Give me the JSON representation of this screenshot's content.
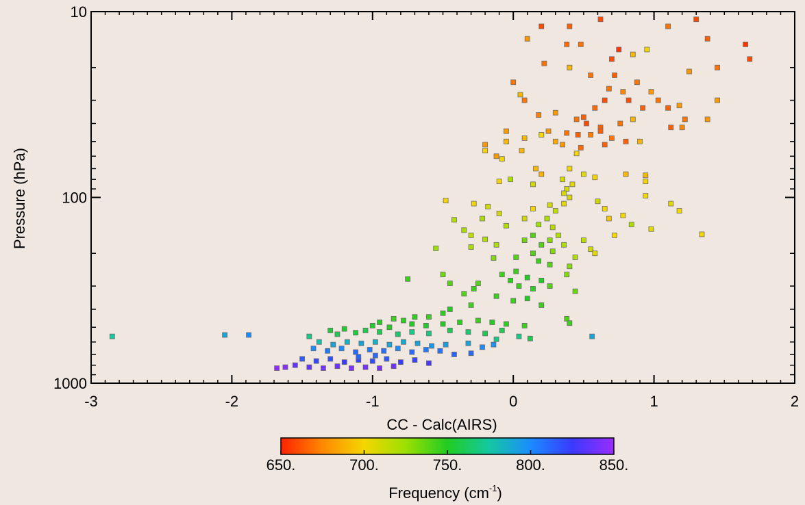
{
  "chart_data": {
    "type": "scatter",
    "xlabel": "CC - Calc(AIRS)",
    "ylabel": "Pressure (hPa)",
    "xlim": [
      -3,
      2
    ],
    "ylim": [
      1000,
      10
    ],
    "y_scale": "log",
    "x_ticks": [
      "-3",
      "-2",
      "-1",
      "0",
      "1",
      "2"
    ],
    "y_ticks": [
      "10",
      "100",
      "1000"
    ],
    "grid": false,
    "colorbar": {
      "label": "Frequency (cm",
      "label_sup": "-1",
      "label_end": ")",
      "range": [
        650,
        850
      ],
      "ticks": [
        "650.",
        "700.",
        "750.",
        "800.",
        "850."
      ],
      "colors": [
        "#ff2200",
        "#ff8800",
        "#f5d600",
        "#9be000",
        "#22cc22",
        "#14c8a0",
        "#1a8cff",
        "#3a3aff",
        "#9b2cff"
      ]
    },
    "points": [
      {
        "x": 0.62,
        "y": 11,
        "f": 660
      },
      {
        "x": 0.75,
        "y": 16,
        "f": 655
      },
      {
        "x": 0.85,
        "y": 17,
        "f": 690
      },
      {
        "x": 0.95,
        "y": 16,
        "f": 700
      },
      {
        "x": 1.1,
        "y": 12,
        "f": 670
      },
      {
        "x": 1.3,
        "y": 11,
        "f": 660
      },
      {
        "x": 1.38,
        "y": 14,
        "f": 665
      },
      {
        "x": 1.65,
        "y": 15,
        "f": 655
      },
      {
        "x": 1.68,
        "y": 18,
        "f": 660
      },
      {
        "x": 1.45,
        "y": 20,
        "f": 670
      },
      {
        "x": 1.25,
        "y": 21,
        "f": 680
      },
      {
        "x": 0.2,
        "y": 12,
        "f": 660
      },
      {
        "x": 0.4,
        "y": 12,
        "f": 665
      },
      {
        "x": 0.48,
        "y": 15,
        "f": 670
      },
      {
        "x": 0.38,
        "y": 15,
        "f": 668
      },
      {
        "x": 0.1,
        "y": 14,
        "f": 680
      },
      {
        "x": 0.22,
        "y": 19,
        "f": 670
      },
      {
        "x": 0.4,
        "y": 20,
        "f": 690
      },
      {
        "x": 0.55,
        "y": 22,
        "f": 670
      },
      {
        "x": 0.7,
        "y": 18,
        "f": 660
      },
      {
        "x": 0.72,
        "y": 22,
        "f": 665
      },
      {
        "x": 0.68,
        "y": 26,
        "f": 670
      },
      {
        "x": 0.65,
        "y": 30,
        "f": 660
      },
      {
        "x": 0.78,
        "y": 27,
        "f": 675
      },
      {
        "x": 0.82,
        "y": 30,
        "f": 660
      },
      {
        "x": 0.88,
        "y": 24,
        "f": 670
      },
      {
        "x": 0.92,
        "y": 33,
        "f": 665
      },
      {
        "x": 0.98,
        "y": 27,
        "f": 680
      },
      {
        "x": 1.03,
        "y": 30,
        "f": 670
      },
      {
        "x": 1.1,
        "y": 33,
        "f": 665
      },
      {
        "x": 1.18,
        "y": 32,
        "f": 680
      },
      {
        "x": 1.22,
        "y": 38,
        "f": 670
      },
      {
        "x": 1.38,
        "y": 38,
        "f": 680
      },
      {
        "x": 1.45,
        "y": 30,
        "f": 680
      },
      {
        "x": 1.12,
        "y": 42,
        "f": 665
      },
      {
        "x": 1.2,
        "y": 42,
        "f": 675
      },
      {
        "x": 0.58,
        "y": 33,
        "f": 668
      },
      {
        "x": 0.5,
        "y": 37,
        "f": 665
      },
      {
        "x": 0.45,
        "y": 38,
        "f": 670
      },
      {
        "x": 0.3,
        "y": 35,
        "f": 680
      },
      {
        "x": 0.18,
        "y": 36,
        "f": 672
      },
      {
        "x": 0.05,
        "y": 28,
        "f": 690
      },
      {
        "x": 0.0,
        "y": 24,
        "f": 670
      },
      {
        "x": 0.08,
        "y": 30,
        "f": 670
      },
      {
        "x": 0.52,
        "y": 40,
        "f": 660
      },
      {
        "x": 0.62,
        "y": 42,
        "f": 665
      },
      {
        "x": 0.76,
        "y": 40,
        "f": 670
      },
      {
        "x": 0.85,
        "y": 38,
        "f": 690
      },
      {
        "x": -0.05,
        "y": 44,
        "f": 680
      },
      {
        "x": 0.08,
        "y": 48,
        "f": 690
      },
      {
        "x": 0.2,
        "y": 46,
        "f": 700
      },
      {
        "x": 0.25,
        "y": 44,
        "f": 680
      },
      {
        "x": 0.38,
        "y": 45,
        "f": 670
      },
      {
        "x": 0.46,
        "y": 46,
        "f": 665
      },
      {
        "x": 0.55,
        "y": 46,
        "f": 672
      },
      {
        "x": 0.62,
        "y": 44,
        "f": 665
      },
      {
        "x": 0.7,
        "y": 48,
        "f": 670
      },
      {
        "x": 0.8,
        "y": 50,
        "f": 665
      },
      {
        "x": 0.9,
        "y": 50,
        "f": 690
      },
      {
        "x": 0.65,
        "y": 52,
        "f": 665
      },
      {
        "x": 0.48,
        "y": 54,
        "f": 668
      },
      {
        "x": 0.45,
        "y": 58,
        "f": 700
      },
      {
        "x": 0.35,
        "y": 52,
        "f": 680
      },
      {
        "x": 0.3,
        "y": 50,
        "f": 685
      },
      {
        "x": -0.05,
        "y": 50,
        "f": 690
      },
      {
        "x": -0.2,
        "y": 52,
        "f": 680
      },
      {
        "x": -0.2,
        "y": 56,
        "f": 700
      },
      {
        "x": 0.06,
        "y": 56,
        "f": 690
      },
      {
        "x": 0.16,
        "y": 70,
        "f": 690
      },
      {
        "x": 0.2,
        "y": 75,
        "f": 688
      },
      {
        "x": 0.4,
        "y": 70,
        "f": 700
      },
      {
        "x": 0.5,
        "y": 75,
        "f": 705
      },
      {
        "x": -0.12,
        "y": 60,
        "f": 680
      },
      {
        "x": -0.08,
        "y": 62,
        "f": 700
      },
      {
        "x": -0.02,
        "y": 80,
        "f": 720
      },
      {
        "x": -0.1,
        "y": 82,
        "f": 700
      },
      {
        "x": 0.14,
        "y": 85,
        "f": 710
      },
      {
        "x": 0.35,
        "y": 80,
        "f": 710
      },
      {
        "x": 0.42,
        "y": 85,
        "f": 705
      },
      {
        "x": 0.58,
        "y": 78,
        "f": 700
      },
      {
        "x": 0.8,
        "y": 75,
        "f": 690
      },
      {
        "x": 0.94,
        "y": 76,
        "f": 690
      },
      {
        "x": 0.94,
        "y": 82,
        "f": 700
      },
      {
        "x": 0.94,
        "y": 98,
        "f": 700
      },
      {
        "x": 1.12,
        "y": 108,
        "f": 705
      },
      {
        "x": 1.18,
        "y": 118,
        "f": 700
      },
      {
        "x": 0.6,
        "y": 105,
        "f": 710
      },
      {
        "x": 0.65,
        "y": 115,
        "f": 700
      },
      {
        "x": 0.68,
        "y": 130,
        "f": 695
      },
      {
        "x": 0.78,
        "y": 125,
        "f": 700
      },
      {
        "x": 0.84,
        "y": 140,
        "f": 720
      },
      {
        "x": 0.98,
        "y": 148,
        "f": 705
      },
      {
        "x": 1.34,
        "y": 158,
        "f": 700
      },
      {
        "x": 0.72,
        "y": 160,
        "f": 700
      },
      {
        "x": -0.48,
        "y": 104,
        "f": 700
      },
      {
        "x": -0.28,
        "y": 108,
        "f": 700
      },
      {
        "x": -0.42,
        "y": 132,
        "f": 720
      },
      {
        "x": -0.18,
        "y": 112,
        "f": 710
      },
      {
        "x": -0.1,
        "y": 122,
        "f": 710
      },
      {
        "x": -0.22,
        "y": 130,
        "f": 720
      },
      {
        "x": 0.08,
        "y": 130,
        "f": 710
      },
      {
        "x": -0.05,
        "y": 142,
        "f": 720
      },
      {
        "x": 0.14,
        "y": 115,
        "f": 700
      },
      {
        "x": 0.26,
        "y": 110,
        "f": 710
      },
      {
        "x": 0.36,
        "y": 108,
        "f": 705
      },
      {
        "x": 0.4,
        "y": 100,
        "f": 708
      },
      {
        "x": 0.38,
        "y": 90,
        "f": 710
      },
      {
        "x": 0.36,
        "y": 95,
        "f": 708
      },
      {
        "x": 0.3,
        "y": 118,
        "f": 715
      },
      {
        "x": 0.24,
        "y": 130,
        "f": 720
      },
      {
        "x": 0.18,
        "y": 140,
        "f": 725
      },
      {
        "x": 0.28,
        "y": 145,
        "f": 715
      },
      {
        "x": 0.32,
        "y": 160,
        "f": 720
      },
      {
        "x": 0.26,
        "y": 170,
        "f": 730
      },
      {
        "x": 0.14,
        "y": 160,
        "f": 740
      },
      {
        "x": 0.08,
        "y": 170,
        "f": 735
      },
      {
        "x": 0.2,
        "y": 180,
        "f": 740
      },
      {
        "x": 0.36,
        "y": 180,
        "f": 720
      },
      {
        "x": 0.5,
        "y": 170,
        "f": 715
      },
      {
        "x": 0.55,
        "y": 190,
        "f": 710
      },
      {
        "x": 0.58,
        "y": 200,
        "f": 705
      },
      {
        "x": 0.44,
        "y": 210,
        "f": 720
      },
      {
        "x": 0.28,
        "y": 195,
        "f": 730
      },
      {
        "x": 0.14,
        "y": 200,
        "f": 740
      },
      {
        "x": 0.02,
        "y": 210,
        "f": 740
      },
      {
        "x": -0.12,
        "y": 180,
        "f": 720
      },
      {
        "x": -0.2,
        "y": 168,
        "f": 720
      },
      {
        "x": -0.3,
        "y": 160,
        "f": 715
      },
      {
        "x": -0.35,
        "y": 150,
        "f": 720
      },
      {
        "x": -0.55,
        "y": 188,
        "f": 725
      },
      {
        "x": -0.3,
        "y": 185,
        "f": 720
      },
      {
        "x": -0.14,
        "y": 212,
        "f": 730
      },
      {
        "x": 0.18,
        "y": 220,
        "f": 745
      },
      {
        "x": 0.26,
        "y": 230,
        "f": 740
      },
      {
        "x": 0.4,
        "y": 235,
        "f": 730
      },
      {
        "x": 0.02,
        "y": 250,
        "f": 745
      },
      {
        "x": -0.08,
        "y": 260,
        "f": 745
      },
      {
        "x": 0.1,
        "y": 270,
        "f": 750
      },
      {
        "x": 0.2,
        "y": 280,
        "f": 750
      },
      {
        "x": -0.02,
        "y": 280,
        "f": 748
      },
      {
        "x": 0.04,
        "y": 300,
        "f": 745
      },
      {
        "x": 0.14,
        "y": 310,
        "f": 748
      },
      {
        "x": 0.26,
        "y": 300,
        "f": 740
      },
      {
        "x": 0.38,
        "y": 260,
        "f": 730
      },
      {
        "x": 0.44,
        "y": 320,
        "f": 735
      },
      {
        "x": -0.25,
        "y": 290,
        "f": 740
      },
      {
        "x": -0.28,
        "y": 310,
        "f": 745
      },
      {
        "x": -0.45,
        "y": 290,
        "f": 740
      },
      {
        "x": -0.5,
        "y": 260,
        "f": 735
      },
      {
        "x": -0.75,
        "y": 275,
        "f": 745
      },
      {
        "x": -0.35,
        "y": 330,
        "f": 740
      },
      {
        "x": -0.12,
        "y": 340,
        "f": 745
      },
      {
        "x": 0.0,
        "y": 360,
        "f": 745
      },
      {
        "x": 0.1,
        "y": 350,
        "f": 750
      },
      {
        "x": 0.2,
        "y": 380,
        "f": 745
      },
      {
        "x": -0.3,
        "y": 380,
        "f": 745
      },
      {
        "x": -0.45,
        "y": 400,
        "f": 750
      },
      {
        "x": -0.5,
        "y": 420,
        "f": 748
      },
      {
        "x": -0.6,
        "y": 440,
        "f": 745
      },
      {
        "x": -0.7,
        "y": 440,
        "f": 748
      },
      {
        "x": -0.78,
        "y": 460,
        "f": 748
      },
      {
        "x": -0.85,
        "y": 450,
        "f": 745
      },
      {
        "x": -0.95,
        "y": 470,
        "f": 750
      },
      {
        "x": -1.0,
        "y": 490,
        "f": 752
      },
      {
        "x": -0.88,
        "y": 500,
        "f": 750
      },
      {
        "x": -0.72,
        "y": 480,
        "f": 750
      },
      {
        "x": -0.62,
        "y": 490,
        "f": 752
      },
      {
        "x": -0.5,
        "y": 480,
        "f": 750
      },
      {
        "x": -0.38,
        "y": 470,
        "f": 748
      },
      {
        "x": -0.25,
        "y": 460,
        "f": 745
      },
      {
        "x": -0.15,
        "y": 470,
        "f": 750
      },
      {
        "x": -0.05,
        "y": 480,
        "f": 748
      },
      {
        "x": 0.08,
        "y": 490,
        "f": 745
      },
      {
        "x": 0.38,
        "y": 450,
        "f": 740
      },
      {
        "x": 0.4,
        "y": 475,
        "f": 745
      },
      {
        "x": -0.08,
        "y": 520,
        "f": 760
      },
      {
        "x": -0.2,
        "y": 540,
        "f": 760
      },
      {
        "x": -0.32,
        "y": 530,
        "f": 765
      },
      {
        "x": -0.45,
        "y": 520,
        "f": 760
      },
      {
        "x": -0.6,
        "y": 540,
        "f": 768
      },
      {
        "x": -0.72,
        "y": 530,
        "f": 770
      },
      {
        "x": -0.82,
        "y": 545,
        "f": 765
      },
      {
        "x": -0.95,
        "y": 530,
        "f": 760
      },
      {
        "x": -1.05,
        "y": 520,
        "f": 758
      },
      {
        "x": -1.12,
        "y": 535,
        "f": 755
      },
      {
        "x": -1.25,
        "y": 545,
        "f": 760
      },
      {
        "x": -1.3,
        "y": 520,
        "f": 755
      },
      {
        "x": -1.2,
        "y": 510,
        "f": 752
      },
      {
        "x": -1.45,
        "y": 560,
        "f": 770
      },
      {
        "x": 0.04,
        "y": 560,
        "f": 770
      },
      {
        "x": 0.12,
        "y": 575,
        "f": 760
      },
      {
        "x": -0.12,
        "y": 580,
        "f": 770
      },
      {
        "x": 0.56,
        "y": 560,
        "f": 790
      },
      {
        "x": -1.38,
        "y": 600,
        "f": 780
      },
      {
        "x": -1.28,
        "y": 620,
        "f": 790
      },
      {
        "x": -1.18,
        "y": 600,
        "f": 785
      },
      {
        "x": -1.08,
        "y": 610,
        "f": 790
      },
      {
        "x": -0.98,
        "y": 600,
        "f": 785
      },
      {
        "x": -0.88,
        "y": 620,
        "f": 790
      },
      {
        "x": -0.78,
        "y": 600,
        "f": 788
      },
      {
        "x": -0.68,
        "y": 610,
        "f": 790
      },
      {
        "x": -0.58,
        "y": 630,
        "f": 795
      },
      {
        "x": -0.48,
        "y": 620,
        "f": 792
      },
      {
        "x": -0.32,
        "y": 610,
        "f": 790
      },
      {
        "x": -0.22,
        "y": 640,
        "f": 800
      },
      {
        "x": -0.14,
        "y": 620,
        "f": 798
      },
      {
        "x": -1.42,
        "y": 650,
        "f": 800
      },
      {
        "x": -1.32,
        "y": 670,
        "f": 805
      },
      {
        "x": -1.22,
        "y": 650,
        "f": 800
      },
      {
        "x": -1.12,
        "y": 680,
        "f": 810
      },
      {
        "x": -1.02,
        "y": 660,
        "f": 805
      },
      {
        "x": -0.92,
        "y": 670,
        "f": 808
      },
      {
        "x": -0.82,
        "y": 650,
        "f": 800
      },
      {
        "x": -0.72,
        "y": 680,
        "f": 810
      },
      {
        "x": -0.62,
        "y": 660,
        "f": 805
      },
      {
        "x": -0.52,
        "y": 670,
        "f": 808
      },
      {
        "x": -0.42,
        "y": 700,
        "f": 812
      },
      {
        "x": -0.3,
        "y": 690,
        "f": 810
      },
      {
        "x": -1.5,
        "y": 740,
        "f": 815
      },
      {
        "x": -1.4,
        "y": 760,
        "f": 820
      },
      {
        "x": -1.3,
        "y": 740,
        "f": 818
      },
      {
        "x": -1.2,
        "y": 770,
        "f": 825
      },
      {
        "x": -1.1,
        "y": 750,
        "f": 822
      },
      {
        "x": -1.0,
        "y": 760,
        "f": 820
      },
      {
        "x": -0.9,
        "y": 740,
        "f": 815
      },
      {
        "x": -0.8,
        "y": 770,
        "f": 825
      },
      {
        "x": -0.7,
        "y": 750,
        "f": 822
      },
      {
        "x": -0.6,
        "y": 780,
        "f": 830
      },
      {
        "x": -1.45,
        "y": 820,
        "f": 835
      },
      {
        "x": -1.35,
        "y": 830,
        "f": 840
      },
      {
        "x": -1.25,
        "y": 810,
        "f": 838
      },
      {
        "x": -1.15,
        "y": 830,
        "f": 842
      },
      {
        "x": -1.05,
        "y": 820,
        "f": 840
      },
      {
        "x": -0.95,
        "y": 830,
        "f": 842
      },
      {
        "x": -0.85,
        "y": 810,
        "f": 838
      },
      {
        "x": -1.55,
        "y": 800,
        "f": 835
      },
      {
        "x": -1.62,
        "y": 820,
        "f": 845
      },
      {
        "x": -1.68,
        "y": 830,
        "f": 848
      },
      {
        "x": -1.1,
        "y": 720,
        "f": 812
      },
      {
        "x": -0.98,
        "y": 710,
        "f": 810
      },
      {
        "x": -2.85,
        "y": 560,
        "f": 775
      },
      {
        "x": -2.05,
        "y": 550,
        "f": 790
      },
      {
        "x": -1.88,
        "y": 550,
        "f": 800
      }
    ]
  }
}
